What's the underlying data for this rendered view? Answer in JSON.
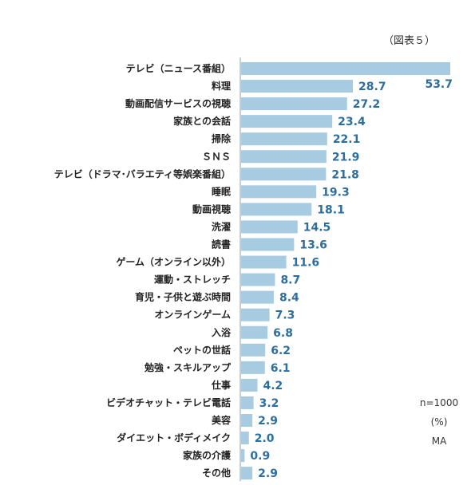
{
  "figure_label": "（図表５）",
  "notes": {
    "n": "n=1000",
    "unit": "(%)",
    "answer_type": "MA"
  },
  "colors": {
    "bar": "#a7cbe1",
    "value_text": "#2d6e9e",
    "axis": "#999999"
  },
  "chart_data": {
    "type": "bar",
    "orientation": "horizontal",
    "title": "",
    "xlabel": "",
    "ylabel": "",
    "xlim": [
      0,
      55
    ],
    "grid": false,
    "categories": [
      "テレビ（ニュース番組）",
      "料理",
      "動画配信サービスの視聴",
      "家族との会話",
      "掃除",
      "ＳＮＳ",
      "テレビ（ドラマ･バラエティ等娯楽番組）",
      "睡眠",
      "動画視聴",
      "洗濯",
      "読書",
      "ゲーム（オンライン以外）",
      "運動・ストレッチ",
      "育児・子供と遊ぶ時間",
      "オンラインゲーム",
      "入浴",
      "ペットの世話",
      "勉強・スキルアップ",
      "仕事",
      "ビデオチャット・テレビ電話",
      "美容",
      "ダイエット・ボディメイク",
      "家族の介護",
      "その他"
    ],
    "values": [
      53.7,
      28.7,
      27.2,
      23.4,
      22.1,
      21.9,
      21.8,
      19.3,
      18.1,
      14.5,
      13.6,
      11.6,
      8.7,
      8.4,
      7.3,
      6.8,
      6.2,
      6.1,
      4.2,
      3.2,
      2.9,
      2.0,
      0.9,
      2.9
    ],
    "value_labels": [
      "53.7",
      "28.7",
      "27.2",
      "23.4",
      "22.1",
      "21.9",
      "21.8",
      "19.3",
      "18.1",
      "14.5",
      "13.6",
      "11.6",
      "8.7",
      "8.4",
      "7.3",
      "6.8",
      "6.2",
      "6.1",
      "4.2",
      "3.2",
      "2.9",
      "2.0",
      "0.9",
      "2.9"
    ]
  }
}
